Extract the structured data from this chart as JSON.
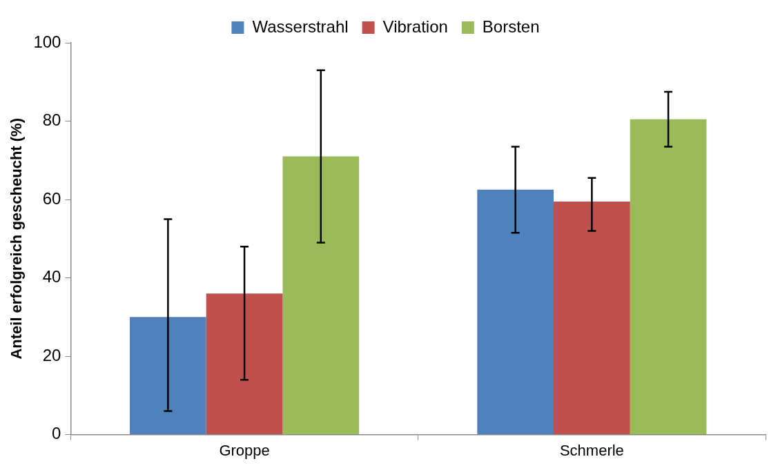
{
  "chart_data": {
    "type": "bar",
    "ylabel": "Anteil erfolgreich gescheucht (%)",
    "categories": [
      "Groppe",
      "Schmerle"
    ],
    "series": [
      {
        "name": "Wasserstrahl",
        "color": "#4f81bd",
        "values": [
          30,
          62.5
        ],
        "errors": [
          [
            6,
            55
          ],
          [
            51.5,
            73.5
          ]
        ]
      },
      {
        "name": "Vibration",
        "color": "#c0504d",
        "values": [
          36,
          59.5
        ],
        "errors": [
          [
            14,
            48
          ],
          [
            52,
            65.5
          ]
        ]
      },
      {
        "name": "Borsten",
        "color": "#9bbb59",
        "values": [
          71,
          80.5
        ],
        "errors": [
          [
            49,
            93
          ],
          [
            73.5,
            87.5
          ]
        ]
      }
    ],
    "ylim": [
      0,
      100
    ],
    "yticks": [
      0,
      20,
      40,
      60,
      80,
      100
    ],
    "grid": false,
    "legend": "top"
  }
}
